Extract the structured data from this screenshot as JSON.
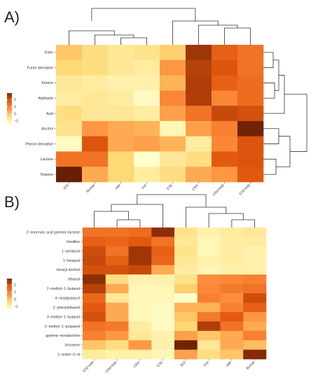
{
  "chart_data": [
    {
      "type": "heatmap",
      "panel_label": "A)",
      "rows": [
        "Ester",
        "Furan derivative",
        "Ketone",
        "Aldehyde",
        "Acid",
        "Alcohol",
        "Phenol derivative",
        "Lactone",
        "Terpene"
      ],
      "cols": [
        "EDI",
        "Boreal",
        "HIR",
        "Inst",
        "STE",
        "CRA",
        "CRA*HIR",
        "STE*HIR"
      ],
      "values": [
        [
          0.0,
          -0.3,
          -0.5,
          -0.4,
          -0.1,
          2.3,
          1.3,
          1.0
        ],
        [
          -0.2,
          -0.3,
          -0.5,
          -0.6,
          0.5,
          2.0,
          1.5,
          1.0
        ],
        [
          -0.5,
          -0.6,
          -0.7,
          -0.7,
          0.2,
          2.1,
          1.3,
          1.1
        ],
        [
          -0.6,
          -0.5,
          -0.6,
          -0.9,
          0.7,
          2.1,
          0.7,
          1.1
        ],
        [
          -0.3,
          -0.5,
          -0.5,
          -0.6,
          0.4,
          1.0,
          1.8,
          1.6
        ],
        [
          -0.4,
          0.5,
          0.3,
          0.2,
          -0.8,
          0.4,
          0.8,
          2.8
        ],
        [
          -0.9,
          1.5,
          0.3,
          0.4,
          0.2,
          -0.6,
          0.7,
          1.5
        ],
        [
          1.0,
          1.0,
          -0.2,
          -1.0,
          -0.5,
          -0.3,
          1.4,
          1.5
        ],
        [
          2.9,
          0.3,
          -0.2,
          -0.6,
          -0.3,
          0.3,
          0.5,
          1.4
        ]
      ],
      "legend_ticks": [
        "2",
        "1",
        "0",
        "−1"
      ]
    },
    {
      "type": "heatmap",
      "panel_label": "B)",
      "rows": [
        "2−nonenoic acid gamma−lactone",
        "Vanilline",
        "1−pentanol",
        "1−hexanol",
        "benzyl alcohol",
        "ethanol",
        "2−methyl−1−butanol",
        "4−vinylguaiacol",
        "2−phenylethanol",
        "3−methyl−1−butanol",
        "2−methyl−1−propanol",
        "gamma−nonalactone",
        "limonene",
        "1−octen−3−ol"
      ],
      "cols": [
        "STE*HIR",
        "CRA*HIR",
        "CRA",
        "STE",
        "EDI",
        "Inst",
        "HIR",
        "Boreal"
      ],
      "values": [
        [
          1.0,
          1.0,
          1.1,
          2.5,
          -0.4,
          -0.7,
          -0.6,
          -0.5
        ],
        [
          1.3,
          1.2,
          1.4,
          1.0,
          -0.5,
          -0.8,
          -0.6,
          -0.6
        ],
        [
          1.7,
          1.0,
          2.3,
          1.3,
          -0.4,
          -0.8,
          -0.6,
          -0.7
        ],
        [
          1.8,
          1.3,
          2.3,
          1.2,
          -0.5,
          -0.7,
          -0.6,
          -0.7
        ],
        [
          1.6,
          1.6,
          1.8,
          0.3,
          -0.6,
          -0.8,
          -0.7,
          -0.7
        ],
        [
          2.5,
          -0.3,
          -0.7,
          -0.7,
          -0.4,
          0.6,
          0.7,
          0.8
        ],
        [
          2.0,
          0.3,
          -0.8,
          -0.8,
          -0.1,
          0.7,
          0.9,
          1.0
        ],
        [
          1.2,
          -0.5,
          -0.8,
          -0.8,
          -1.0,
          0.8,
          0.6,
          1.7
        ],
        [
          1.4,
          0.3,
          -0.8,
          -0.9,
          0.2,
          0.2,
          0.8,
          1.3
        ],
        [
          1.6,
          0.3,
          -0.8,
          -0.9,
          0.0,
          0.9,
          1.4,
          0.5
        ],
        [
          1.0,
          0.9,
          -0.6,
          -0.9,
          -0.2,
          2.1,
          1.0,
          0.3
        ],
        [
          0.8,
          0.5,
          -0.5,
          -0.7,
          0.4,
          0.0,
          0.3,
          0.8
        ],
        [
          0.0,
          -0.3,
          0.5,
          -0.7,
          2.8,
          -0.5,
          0.3,
          0.1
        ],
        [
          -0.6,
          -0.7,
          -0.7,
          -0.8,
          0.4,
          -0.3,
          0.0,
          2.6
        ]
      ],
      "legend_ticks": [
        "2",
        "1",
        "0",
        "−1"
      ]
    }
  ],
  "colors": {
    "scale": [
      "#ffffcc",
      "#fed976",
      "#fd8d3c",
      "#e3590f",
      "#a83a08",
      "#5e1c04"
    ]
  }
}
